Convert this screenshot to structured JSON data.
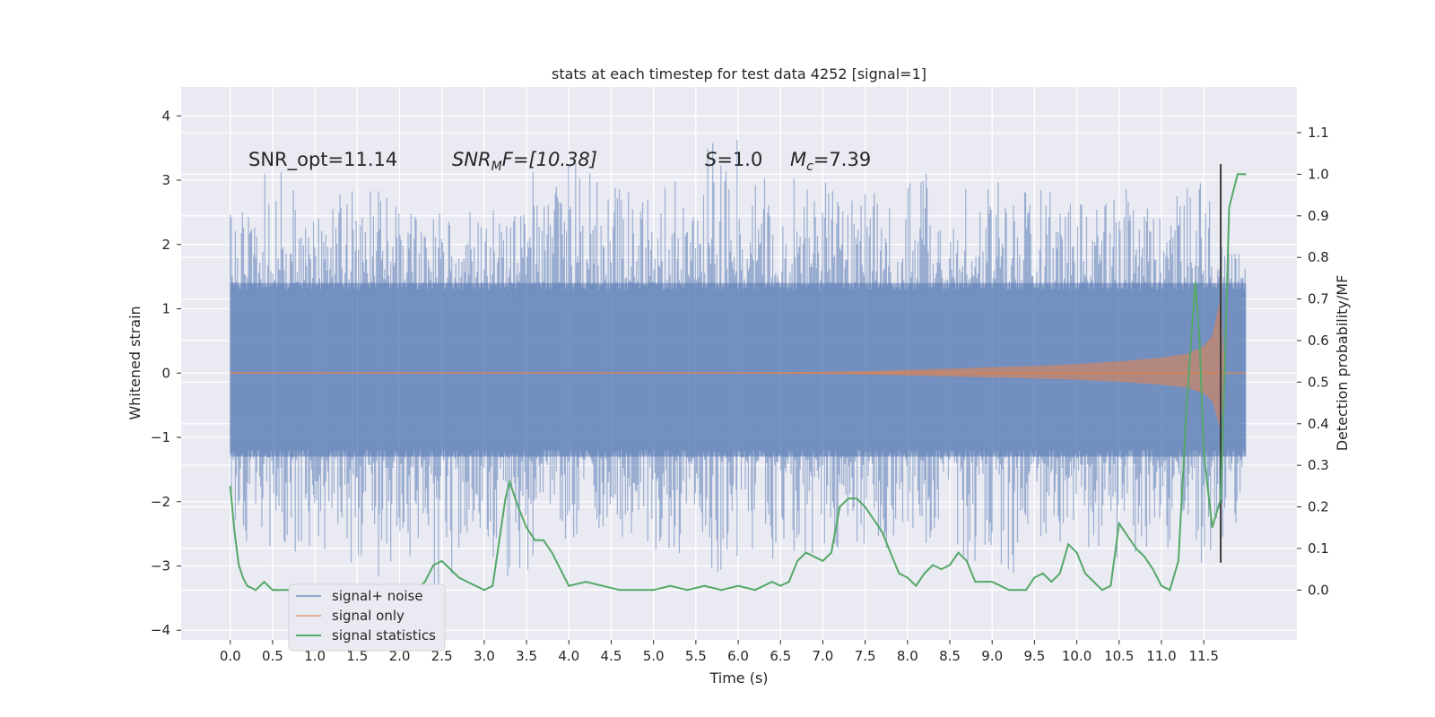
{
  "chart_data": {
    "type": "line",
    "title": "stats at each timestep for test data 4252 [signal=1]",
    "xlabel": "Time (s)",
    "ylabel": "Whitened strain",
    "y2label": "Detection probability/MF",
    "xlim": [
      -0.58,
      12.6
    ],
    "ylim": [
      -4.15,
      4.45
    ],
    "y2lim": [
      -0.12,
      1.21
    ],
    "grid": true,
    "legend_position": "lower-left",
    "x_ticks": [
      "0.0",
      "0.5",
      "1.0",
      "1.5",
      "2.0",
      "2.5",
      "3.0",
      "3.5",
      "4.0",
      "4.5",
      "5.0",
      "5.5",
      "6.0",
      "6.5",
      "7.0",
      "7.5",
      "8.0",
      "8.5",
      "9.0",
      "9.5",
      "10.0",
      "10.5",
      "11.0",
      "11.5"
    ],
    "y_ticks": [
      "−4",
      "−3",
      "−2",
      "−1",
      "0",
      "1",
      "2",
      "3",
      "4"
    ],
    "y2_ticks": [
      "0.0",
      "0.1",
      "0.2",
      "0.3",
      "0.4",
      "0.5",
      "0.6",
      "0.7",
      "0.8",
      "0.9",
      "1.0",
      "1.1"
    ],
    "annotations": {
      "snr_opt": "SNR_opt=11.14",
      "snr_mf_main": "SNR",
      "snr_mf_sub": "M",
      "snr_mf_rest": "F=[10.38]",
      "s_main": "S",
      "s_rest": "=1.0",
      "mc_main": "M",
      "mc_sub": "c",
      "mc_rest": "=7.39"
    },
    "merger_time": 11.7,
    "series": [
      {
        "name": "signal+ noise",
        "color": "#4c72b0",
        "axis": "left",
        "envelope_x": [
          0.0,
          0.5,
          1.0,
          1.5,
          2.0,
          2.5,
          3.0,
          3.5,
          4.0,
          4.5,
          5.0,
          5.5,
          6.0,
          6.5,
          7.0,
          7.5,
          8.0,
          8.5,
          9.0,
          9.5,
          10.0,
          10.5,
          11.0,
          11.5,
          11.75,
          12.0
        ],
        "envelope_max": [
          2.6,
          3.3,
          2.5,
          3.0,
          2.7,
          2.6,
          2.6,
          3.1,
          3.4,
          3.0,
          2.7,
          3.4,
          4.1,
          3.1,
          3.0,
          2.8,
          3.2,
          3.1,
          3.0,
          2.9,
          2.7,
          3.1,
          2.8,
          3.3,
          2.5,
          1.6
        ],
        "envelope_min": [
          -2.9,
          -3.0,
          -2.9,
          -3.0,
          -3.4,
          -3.6,
          -3.2,
          -3.4,
          -2.6,
          -2.5,
          -2.8,
          -3.2,
          -3.0,
          -3.1,
          -2.8,
          -2.7,
          -2.8,
          -2.9,
          -3.6,
          -2.8,
          -2.8,
          -2.9,
          -2.8,
          -3.2,
          -2.7,
          -2.0
        ]
      },
      {
        "name": "signal only",
        "color": "#dd8452",
        "axis": "left",
        "envelope_x": [
          0.0,
          6.0,
          7.0,
          7.5,
          8.0,
          8.5,
          9.0,
          9.5,
          10.0,
          10.5,
          11.0,
          11.3,
          11.5,
          11.6,
          11.7,
          11.75,
          12.0
        ],
        "envelope_amp": [
          0.01,
          0.01,
          0.02,
          0.03,
          0.05,
          0.07,
          0.09,
          0.11,
          0.14,
          0.18,
          0.24,
          0.3,
          0.42,
          0.58,
          1.2,
          0.0,
          0.0
        ]
      },
      {
        "name": "signal statistics",
        "color": "#55a868",
        "axis": "right",
        "x": [
          0.0,
          0.05,
          0.1,
          0.15,
          0.2,
          0.3,
          0.4,
          0.5,
          0.6,
          0.8,
          1.0,
          1.2,
          1.4,
          1.6,
          1.8,
          2.0,
          2.2,
          2.3,
          2.4,
          2.5,
          2.6,
          2.7,
          2.8,
          3.0,
          3.1,
          3.2,
          3.25,
          3.3,
          3.4,
          3.5,
          3.6,
          3.7,
          3.8,
          4.0,
          4.2,
          4.4,
          4.6,
          4.8,
          5.0,
          5.2,
          5.4,
          5.6,
          5.8,
          6.0,
          6.2,
          6.4,
          6.5,
          6.6,
          6.7,
          6.8,
          6.9,
          7.0,
          7.1,
          7.2,
          7.3,
          7.4,
          7.5,
          7.6,
          7.7,
          7.8,
          7.9,
          8.0,
          8.1,
          8.2,
          8.3,
          8.4,
          8.5,
          8.6,
          8.7,
          8.8,
          9.0,
          9.2,
          9.4,
          9.5,
          9.6,
          9.7,
          9.8,
          9.9,
          10.0,
          10.1,
          10.2,
          10.3,
          10.4,
          10.5,
          10.6,
          10.7,
          10.8,
          10.9,
          11.0,
          11.1,
          11.2,
          11.3,
          11.4,
          11.45,
          11.5,
          11.6,
          11.7,
          11.75,
          11.8,
          11.9,
          12.0
        ],
        "y": [
          0.25,
          0.14,
          0.06,
          0.03,
          0.01,
          0.0,
          0.02,
          0.0,
          0.0,
          0.0,
          0.01,
          0.01,
          0.0,
          0.01,
          0.0,
          0.0,
          0.0,
          0.02,
          0.06,
          0.07,
          0.05,
          0.03,
          0.02,
          0.0,
          0.01,
          0.15,
          0.22,
          0.26,
          0.2,
          0.15,
          0.12,
          0.12,
          0.09,
          0.01,
          0.02,
          0.01,
          0.0,
          0.0,
          0.0,
          0.01,
          0.0,
          0.01,
          0.0,
          0.01,
          0.0,
          0.02,
          0.01,
          0.02,
          0.07,
          0.09,
          0.08,
          0.07,
          0.09,
          0.2,
          0.22,
          0.22,
          0.2,
          0.17,
          0.14,
          0.09,
          0.04,
          0.03,
          0.01,
          0.04,
          0.06,
          0.05,
          0.06,
          0.09,
          0.07,
          0.02,
          0.02,
          0.0,
          0.0,
          0.03,
          0.04,
          0.02,
          0.04,
          0.11,
          0.09,
          0.04,
          0.02,
          0.0,
          0.01,
          0.16,
          0.13,
          0.1,
          0.08,
          0.05,
          0.01,
          0.0,
          0.07,
          0.45,
          0.74,
          0.6,
          0.33,
          0.15,
          0.22,
          0.55,
          0.92,
          1.0,
          1.0
        ]
      }
    ]
  }
}
